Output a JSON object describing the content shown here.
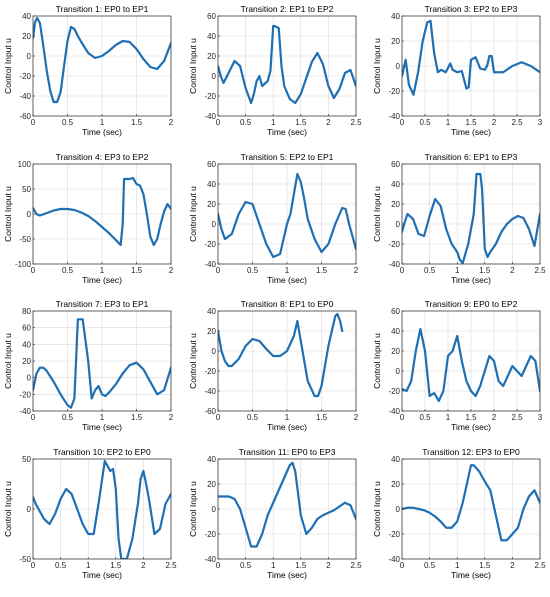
{
  "figure": {
    "line_color": "#1f6fb2",
    "grid_color": "#d9d9d9",
    "axis_color": "#262626"
  },
  "chart_data": [
    {
      "type": "line",
      "title": "Transition 1: EP0 to EP1",
      "xlabel": "Time (sec)",
      "ylabel": "Control Input u",
      "xlim": [
        0,
        2
      ],
      "ylim": [
        -60,
        40
      ],
      "xticks": [
        0,
        0.5,
        1,
        1.5,
        2
      ],
      "yticks": [
        -60,
        -40,
        -20,
        0,
        20,
        40
      ],
      "grid": true,
      "x": [
        0,
        0.03,
        0.06,
        0.1,
        0.15,
        0.2,
        0.25,
        0.3,
        0.35,
        0.4,
        0.45,
        0.5,
        0.55,
        0.6,
        0.65,
        0.7,
        0.8,
        0.9,
        1.0,
        1.1,
        1.2,
        1.3,
        1.4,
        1.5,
        1.6,
        1.7,
        1.8,
        1.9,
        2.0
      ],
      "y": [
        18,
        34,
        38,
        33,
        10,
        -15,
        -35,
        -46,
        -46,
        -36,
        -10,
        15,
        29,
        27,
        20,
        14,
        3,
        -2,
        0,
        5,
        11,
        15,
        14,
        7,
        -3,
        -11,
        -13,
        -5,
        13
      ]
    },
    {
      "type": "line",
      "title": "Transition 2: EP1 to EP2",
      "xlabel": "Time (sec)",
      "ylabel": "Control Input u",
      "xlim": [
        0,
        2.5
      ],
      "ylim": [
        -40,
        60
      ],
      "xticks": [
        0,
        0.5,
        1,
        1.5,
        2,
        2.5
      ],
      "yticks": [
        -40,
        -20,
        0,
        20,
        40,
        60
      ],
      "grid": true,
      "x": [
        0,
        0.05,
        0.1,
        0.2,
        0.3,
        0.4,
        0.5,
        0.6,
        0.65,
        0.7,
        0.75,
        0.8,
        0.9,
        0.95,
        1.0,
        1.02,
        1.1,
        1.15,
        1.2,
        1.3,
        1.4,
        1.5,
        1.6,
        1.7,
        1.8,
        1.9,
        2.0,
        2.1,
        2.2,
        2.3,
        2.4,
        2.5
      ],
      "y": [
        10,
        0,
        -7,
        4,
        15,
        10,
        -12,
        -27,
        -18,
        -5,
        0,
        -10,
        -5,
        5,
        50,
        50,
        48,
        10,
        -10,
        -23,
        -27,
        -18,
        -2,
        14,
        23,
        12,
        -10,
        -22,
        -13,
        3,
        6,
        -10
      ]
    },
    {
      "type": "line",
      "title": "Transition 3: EP2 to EP3",
      "xlabel": "Time (sec)",
      "ylabel": "Control Input u",
      "xlim": [
        0,
        3
      ],
      "ylim": [
        -40,
        40
      ],
      "xticks": [
        0,
        0.5,
        1,
        1.5,
        2,
        2.5,
        3
      ],
      "yticks": [
        -40,
        -20,
        0,
        20,
        40
      ],
      "grid": true,
      "x": [
        0,
        0.08,
        0.15,
        0.25,
        0.35,
        0.45,
        0.55,
        0.62,
        0.7,
        0.78,
        0.85,
        0.95,
        1.05,
        1.1,
        1.2,
        1.3,
        1.4,
        1.45,
        1.5,
        1.6,
        1.7,
        1.8,
        1.85,
        1.9,
        1.95,
        2.0,
        2.1,
        2.2,
        2.4,
        2.6,
        2.8,
        3.0
      ],
      "y": [
        -8,
        5,
        -15,
        -23,
        -5,
        20,
        35,
        36,
        10,
        -5,
        -3,
        -5,
        2,
        -3,
        -5,
        -4,
        -18,
        -17,
        5,
        7,
        -2,
        -3,
        0,
        8,
        8,
        -5,
        -5,
        -5,
        0,
        3,
        0,
        -5
      ]
    },
    {
      "type": "line",
      "title": "Transition 4: EP3 to EP2",
      "xlabel": "Time (sec)",
      "ylabel": "Control Input u",
      "xlim": [
        0,
        2
      ],
      "ylim": [
        -100,
        100
      ],
      "xticks": [
        0,
        0.5,
        1,
        1.5,
        2
      ],
      "yticks": [
        -100,
        -50,
        0,
        50,
        100
      ],
      "grid": true,
      "x": [
        0,
        0.05,
        0.1,
        0.2,
        0.3,
        0.4,
        0.5,
        0.6,
        0.7,
        0.8,
        0.9,
        1.0,
        1.1,
        1.2,
        1.27,
        1.3,
        1.32,
        1.4,
        1.45,
        1.5,
        1.55,
        1.6,
        1.65,
        1.7,
        1.75,
        1.8,
        1.85,
        1.9,
        1.95,
        2.0
      ],
      "y": [
        12,
        0,
        -3,
        2,
        7,
        10,
        10,
        8,
        3,
        -4,
        -14,
        -26,
        -38,
        -52,
        -62,
        -20,
        70,
        70,
        72,
        60,
        57,
        40,
        0,
        -45,
        -62,
        -50,
        -20,
        5,
        20,
        10
      ]
    },
    {
      "type": "line",
      "title": "Transition 5: EP2 to EP1",
      "xlabel": "Time (sec)",
      "ylabel": "Control Input u",
      "xlim": [
        0,
        2
      ],
      "ylim": [
        -40,
        60
      ],
      "xticks": [
        0,
        0.5,
        1,
        1.5,
        2
      ],
      "yticks": [
        -40,
        -20,
        0,
        20,
        40,
        60
      ],
      "grid": true,
      "x": [
        0,
        0.05,
        0.1,
        0.2,
        0.3,
        0.4,
        0.5,
        0.6,
        0.7,
        0.8,
        0.9,
        0.95,
        1.0,
        1.05,
        1.1,
        1.15,
        1.2,
        1.25,
        1.3,
        1.4,
        1.5,
        1.6,
        1.7,
        1.8,
        1.85,
        1.9,
        2.0
      ],
      "y": [
        10,
        -5,
        -15,
        -10,
        10,
        22,
        20,
        0,
        -20,
        -33,
        -30,
        -15,
        0,
        10,
        30,
        50,
        42,
        25,
        5,
        -15,
        -28,
        -20,
        0,
        16,
        15,
        0,
        -25
      ]
    },
    {
      "type": "line",
      "title": "Transition 6: EP1 to EP3",
      "xlabel": "Time (sec)",
      "ylabel": "Control Input u",
      "xlim": [
        0,
        2.5
      ],
      "ylim": [
        -40,
        60
      ],
      "xticks": [
        0,
        0.5,
        1,
        1.5,
        2,
        2.5
      ],
      "yticks": [
        -40,
        -20,
        0,
        20,
        40,
        60
      ],
      "grid": true,
      "x": [
        0,
        0.05,
        0.1,
        0.2,
        0.3,
        0.4,
        0.5,
        0.6,
        0.7,
        0.8,
        0.9,
        1.0,
        1.05,
        1.1,
        1.2,
        1.3,
        1.35,
        1.42,
        1.45,
        1.5,
        1.55,
        1.6,
        1.7,
        1.8,
        1.9,
        2.0,
        2.1,
        2.2,
        2.3,
        2.4,
        2.5
      ],
      "y": [
        -8,
        2,
        10,
        5,
        -10,
        -12,
        8,
        25,
        18,
        -5,
        -20,
        -28,
        -36,
        -39,
        -20,
        10,
        50,
        50,
        35,
        -25,
        -33,
        -28,
        -20,
        -8,
        0,
        5,
        8,
        6,
        -5,
        -22,
        10
      ]
    },
    {
      "type": "line",
      "title": "Transition 7: EP3 to EP1",
      "xlabel": "Time (sec)",
      "ylabel": "Control Input u",
      "xlim": [
        0,
        2
      ],
      "ylim": [
        -40,
        80
      ],
      "xticks": [
        0,
        0.5,
        1,
        1.5,
        2
      ],
      "yticks": [
        -40,
        -20,
        0,
        20,
        40,
        60,
        80
      ],
      "grid": true,
      "x": [
        0,
        0.05,
        0.1,
        0.15,
        0.2,
        0.3,
        0.4,
        0.5,
        0.55,
        0.6,
        0.65,
        0.7,
        0.72,
        0.8,
        0.85,
        0.9,
        0.95,
        1.0,
        1.05,
        1.1,
        1.2,
        1.3,
        1.4,
        1.5,
        1.6,
        1.7,
        1.8,
        1.9,
        2.0
      ],
      "y": [
        -15,
        5,
        12,
        12,
        8,
        -5,
        -20,
        -33,
        -36,
        -25,
        70,
        70,
        70,
        20,
        -25,
        -15,
        -10,
        -20,
        -22,
        -18,
        -8,
        5,
        15,
        18,
        10,
        -5,
        -20,
        -15,
        12
      ]
    },
    {
      "type": "line",
      "title": "Transition 8: EP1 to EP0",
      "xlabel": "Time (sec)",
      "ylabel": "Control Input u",
      "xlim": [
        0,
        2
      ],
      "ylim": [
        -60,
        40
      ],
      "xticks": [
        0,
        0.5,
        1,
        1.5,
        2
      ],
      "yticks": [
        -60,
        -40,
        -20,
        0,
        20,
        40
      ],
      "grid": true,
      "x": [
        0,
        0.05,
        0.1,
        0.15,
        0.2,
        0.3,
        0.4,
        0.5,
        0.6,
        0.7,
        0.8,
        0.9,
        1.0,
        1.1,
        1.15,
        1.2,
        1.3,
        1.4,
        1.45,
        1.5,
        1.6,
        1.7,
        1.73,
        1.77,
        1.8
      ],
      "y": [
        20,
        0,
        -10,
        -15,
        -15,
        -8,
        5,
        12,
        10,
        2,
        -5,
        -5,
        0,
        15,
        30,
        10,
        -30,
        -45,
        -45,
        -35,
        5,
        35,
        37,
        30,
        20
      ]
    },
    {
      "type": "line",
      "title": "Transition 9: EP0 to EP2",
      "xlabel": "Time (sec)",
      "ylabel": "Control Input u",
      "xlim": [
        0,
        3
      ],
      "ylim": [
        -40,
        60
      ],
      "xticks": [
        0,
        0.5,
        1,
        1.5,
        2,
        2.5,
        3
      ],
      "yticks": [
        -40,
        -20,
        0,
        20,
        40,
        60
      ],
      "grid": true,
      "x": [
        0,
        0.1,
        0.2,
        0.3,
        0.4,
        0.5,
        0.6,
        0.7,
        0.8,
        0.9,
        1.0,
        1.1,
        1.2,
        1.3,
        1.4,
        1.5,
        1.6,
        1.7,
        1.8,
        1.9,
        2.0,
        2.1,
        2.2,
        2.3,
        2.4,
        2.5,
        2.6,
        2.7,
        2.8,
        2.9,
        3.0
      ],
      "y": [
        -18,
        -20,
        -10,
        20,
        42,
        20,
        -25,
        -22,
        -30,
        -20,
        15,
        20,
        35,
        10,
        -10,
        -20,
        -25,
        -15,
        0,
        15,
        10,
        -10,
        -15,
        -5,
        5,
        0,
        -5,
        5,
        15,
        10,
        -20
      ]
    },
    {
      "type": "line",
      "title": "Transition 10: EP2 to EP0",
      "xlabel": "Time (sec)",
      "ylabel": "Control Input u",
      "xlim": [
        0,
        2.5
      ],
      "ylim": [
        -50,
        50
      ],
      "xticks": [
        0,
        0.5,
        1,
        1.5,
        2,
        2.5
      ],
      "yticks": [
        -50,
        0,
        50
      ],
      "grid": true,
      "x": [
        0,
        0.05,
        0.1,
        0.2,
        0.3,
        0.4,
        0.5,
        0.6,
        0.7,
        0.8,
        0.9,
        1.0,
        1.1,
        1.2,
        1.3,
        1.4,
        1.45,
        1.5,
        1.55,
        1.6,
        1.7,
        1.8,
        1.9,
        1.95,
        2.0,
        2.05,
        2.1,
        2.2,
        2.3,
        2.4,
        2.5
      ],
      "y": [
        12,
        5,
        0,
        -10,
        -15,
        -5,
        10,
        20,
        15,
        0,
        -15,
        -25,
        -25,
        10,
        48,
        38,
        40,
        20,
        -30,
        -50,
        -50,
        -30,
        5,
        30,
        38,
        25,
        10,
        -25,
        -20,
        5,
        15
      ]
    },
    {
      "type": "line",
      "title": "Transition 11: EP0 to EP3",
      "xlabel": "Time (sec)",
      "ylabel": "Control Input u",
      "xlim": [
        0,
        2.5
      ],
      "ylim": [
        -40,
        40
      ],
      "xticks": [
        0,
        0.5,
        1,
        1.5,
        2,
        2.5
      ],
      "yticks": [
        -40,
        -20,
        0,
        20,
        40
      ],
      "grid": true,
      "x": [
        0,
        0.1,
        0.2,
        0.3,
        0.4,
        0.5,
        0.6,
        0.7,
        0.8,
        0.9,
        1.0,
        1.1,
        1.2,
        1.3,
        1.35,
        1.4,
        1.5,
        1.6,
        1.7,
        1.8,
        1.9,
        2.0,
        2.1,
        2.2,
        2.3,
        2.4,
        2.5
      ],
      "y": [
        10,
        10,
        10,
        8,
        0,
        -15,
        -30,
        -30,
        -20,
        -5,
        5,
        15,
        25,
        35,
        37,
        30,
        -5,
        -20,
        -15,
        -8,
        -5,
        -3,
        -1,
        2,
        5,
        3,
        -8
      ]
    },
    {
      "type": "line",
      "title": "Transition 12: EP3 to EP0",
      "xlabel": "Time (sec)",
      "ylabel": "Control Input u",
      "xlim": [
        0,
        2.5
      ],
      "ylim": [
        -40,
        40
      ],
      "xticks": [
        0,
        0.5,
        1,
        1.5,
        2,
        2.5
      ],
      "yticks": [
        -40,
        -20,
        0,
        20,
        40
      ],
      "grid": true,
      "x": [
        0,
        0.1,
        0.2,
        0.3,
        0.4,
        0.5,
        0.6,
        0.7,
        0.8,
        0.9,
        1.0,
        1.1,
        1.2,
        1.25,
        1.3,
        1.4,
        1.5,
        1.6,
        1.7,
        1.75,
        1.8,
        1.9,
        2.0,
        2.1,
        2.2,
        2.3,
        2.4,
        2.5
      ],
      "y": [
        0,
        1,
        1,
        0,
        -1,
        -3,
        -6,
        -10,
        -15,
        -15,
        -10,
        5,
        25,
        35,
        35,
        30,
        22,
        15,
        -5,
        -15,
        -25,
        -25,
        -20,
        -15,
        0,
        10,
        15,
        5
      ]
    }
  ]
}
